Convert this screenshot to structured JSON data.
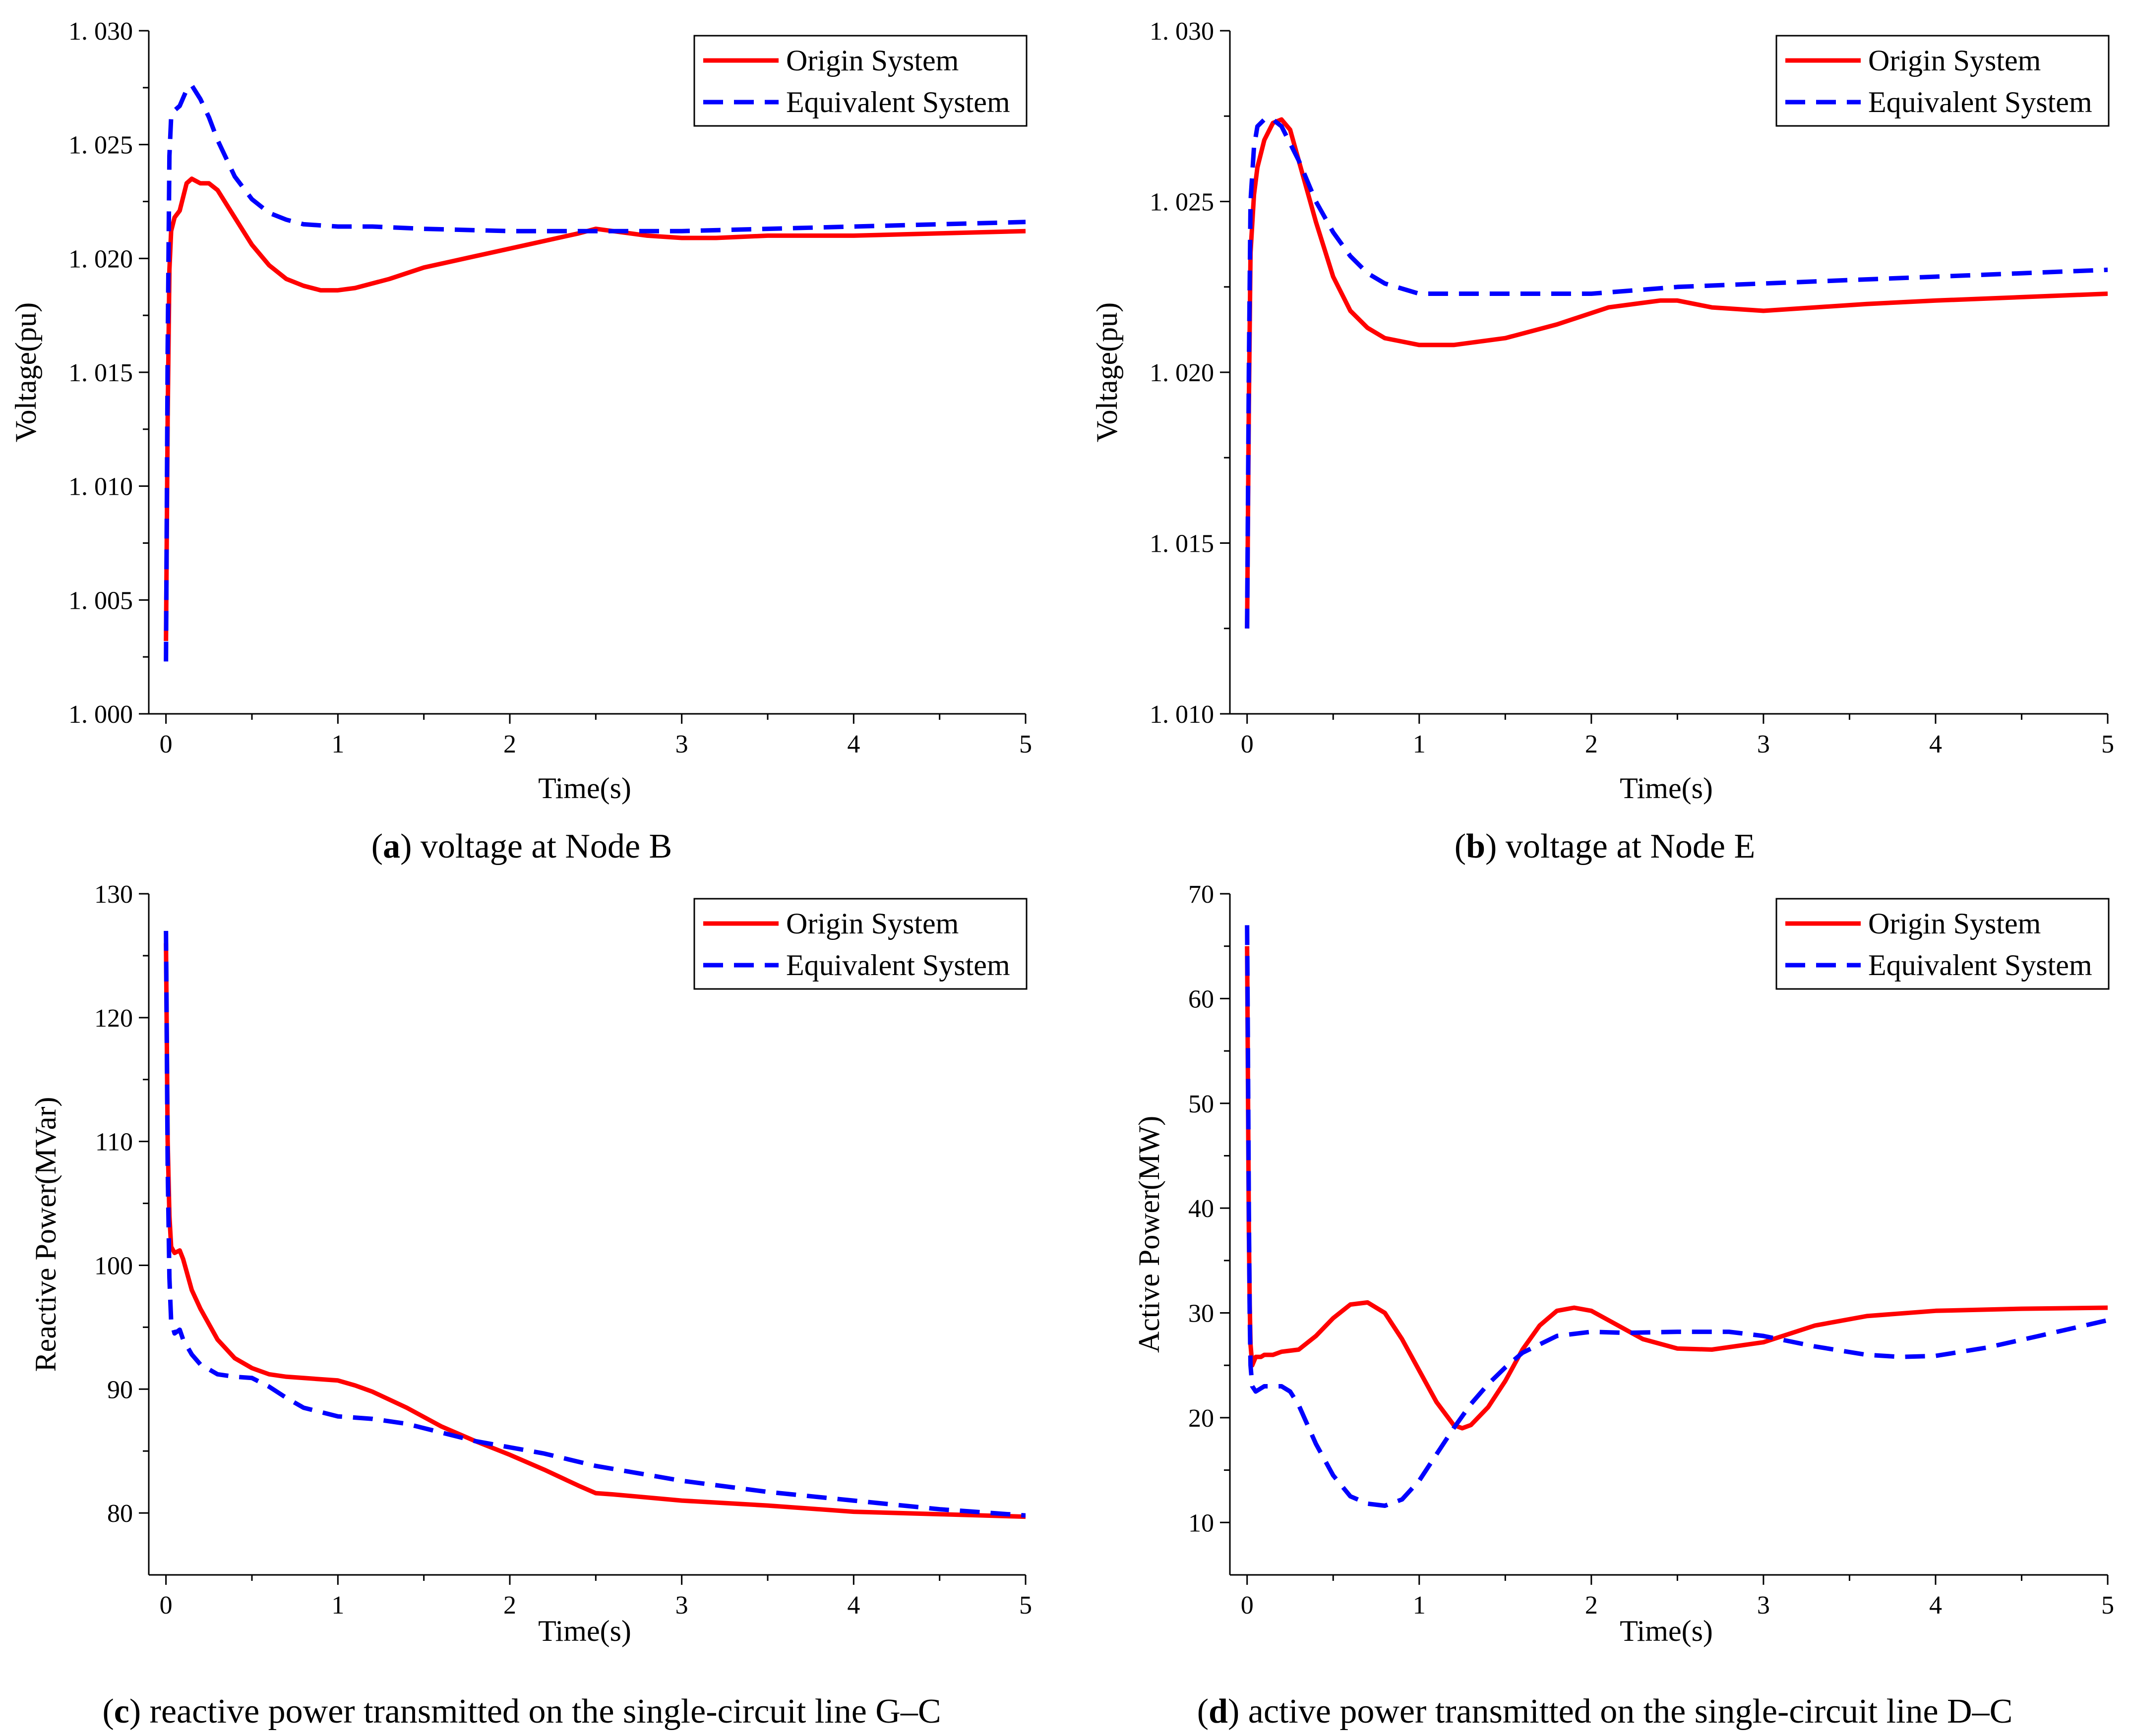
{
  "series_styles": {
    "origin_color": "#ff0000",
    "equivalent_color": "#0000ff"
  },
  "chart_data": [
    {
      "id": "a",
      "type": "line",
      "caption_letter": "a",
      "caption_text": " voltage at Node B",
      "xlabel": "Time(s)",
      "ylabel": "Voltage(pu)",
      "xlim": [
        -0.1,
        5
      ],
      "ylim": [
        1.0,
        1.03
      ],
      "xticks": [
        0,
        1,
        2,
        3,
        4,
        5
      ],
      "xtick_labels": [
        "0",
        "1",
        "2",
        "3",
        "4",
        "5"
      ],
      "yticks": [
        1.0,
        1.005,
        1.01,
        1.015,
        1.02,
        1.025,
        1.03
      ],
      "ytick_labels": [
        "1. 000",
        "1. 005",
        "1. 010",
        "1. 015",
        "1. 020",
        "1. 025",
        "1. 030"
      ],
      "legend": [
        "Origin System",
        "Equivalent System"
      ],
      "legend_position": "top-right",
      "series": [
        {
          "name": "Origin System",
          "style": "solid",
          "x": [
            0,
            0.01,
            0.02,
            0.03,
            0.05,
            0.08,
            0.12,
            0.15,
            0.2,
            0.25,
            0.3,
            0.4,
            0.5,
            0.6,
            0.7,
            0.8,
            0.9,
            1.0,
            1.1,
            1.3,
            1.5,
            1.8,
            2.1,
            2.4,
            2.5,
            2.6,
            2.8,
            3.0,
            3.2,
            3.5,
            4.0,
            4.5,
            5.0
          ],
          "y": [
            1.0032,
            1.013,
            1.0195,
            1.0212,
            1.0218,
            1.0221,
            1.0233,
            1.0235,
            1.0233,
            1.0233,
            1.023,
            1.0218,
            1.0206,
            1.0197,
            1.0191,
            1.0188,
            1.0186,
            1.0186,
            1.0187,
            1.0191,
            1.0196,
            1.0201,
            1.0206,
            1.0211,
            1.0213,
            1.0212,
            1.021,
            1.0209,
            1.0209,
            1.021,
            1.021,
            1.0211,
            1.0212
          ]
        },
        {
          "name": "Equivalent System",
          "style": "dashed",
          "x": [
            0,
            0.01,
            0.02,
            0.03,
            0.05,
            0.08,
            0.12,
            0.15,
            0.2,
            0.25,
            0.3,
            0.4,
            0.5,
            0.6,
            0.7,
            0.8,
            1.0,
            1.2,
            1.5,
            2.0,
            2.5,
            3.0,
            3.5,
            4.0,
            4.5,
            5.0
          ],
          "y": [
            1.0023,
            1.016,
            1.0245,
            1.0262,
            1.0265,
            1.0267,
            1.0274,
            1.0276,
            1.027,
            1.0262,
            1.0252,
            1.0236,
            1.0226,
            1.022,
            1.0217,
            1.0215,
            1.0214,
            1.0214,
            1.0213,
            1.0212,
            1.0212,
            1.0212,
            1.0213,
            1.0214,
            1.0215,
            1.0216
          ]
        }
      ]
    },
    {
      "id": "b",
      "type": "line",
      "caption_letter": "b",
      "caption_text": " voltage at Node E",
      "xlabel": "Time(s)",
      "ylabel": "Voltage(pu)",
      "xlim": [
        -0.1,
        5
      ],
      "ylim": [
        1.01,
        1.03
      ],
      "xticks": [
        0,
        1,
        2,
        3,
        4,
        5
      ],
      "xtick_labels": [
        "0",
        "1",
        "2",
        "3",
        "4",
        "5"
      ],
      "yticks": [
        1.01,
        1.015,
        1.02,
        1.025,
        1.03
      ],
      "ytick_labels": [
        "1. 010",
        "1. 015",
        "1. 020",
        "1. 025",
        "1. 030"
      ],
      "legend": [
        "Origin System",
        "Equivalent System"
      ],
      "legend_position": "top-right",
      "series": [
        {
          "name": "Origin System",
          "style": "solid",
          "x": [
            0,
            0.01,
            0.02,
            0.04,
            0.06,
            0.1,
            0.15,
            0.2,
            0.25,
            0.3,
            0.4,
            0.5,
            0.6,
            0.7,
            0.8,
            0.9,
            1.0,
            1.1,
            1.2,
            1.5,
            1.8,
            2.1,
            2.4,
            2.5,
            2.7,
            3.0,
            3.3,
            3.6,
            4.0,
            4.5,
            5.0
          ],
          "y": [
            1.0125,
            1.019,
            1.0235,
            1.0252,
            1.026,
            1.0268,
            1.0273,
            1.0274,
            1.0271,
            1.0262,
            1.0244,
            1.0228,
            1.0218,
            1.0213,
            1.021,
            1.0209,
            1.0208,
            1.0208,
            1.0208,
            1.021,
            1.0214,
            1.0219,
            1.0221,
            1.0221,
            1.0219,
            1.0218,
            1.0219,
            1.022,
            1.0221,
            1.0222,
            1.0223
          ]
        },
        {
          "name": "Equivalent System",
          "style": "dashed",
          "x": [
            0,
            0.01,
            0.02,
            0.04,
            0.06,
            0.1,
            0.15,
            0.2,
            0.3,
            0.4,
            0.5,
            0.6,
            0.7,
            0.8,
            1.0,
            1.2,
            1.5,
            2.0,
            2.5,
            3.0,
            3.5,
            4.0,
            4.5,
            5.0
          ],
          "y": [
            1.0125,
            1.02,
            1.025,
            1.0266,
            1.0272,
            1.0274,
            1.0274,
            1.0272,
            1.0262,
            1.025,
            1.0241,
            1.0234,
            1.0229,
            1.0226,
            1.0223,
            1.0223,
            1.0223,
            1.0223,
            1.0225,
            1.0226,
            1.0227,
            1.0228,
            1.0229,
            1.023
          ]
        }
      ]
    },
    {
      "id": "c",
      "type": "line",
      "caption_letter": "c",
      "caption_text": " reactive power transmitted on the single-circuit line G–C",
      "xlabel": "Time(s)",
      "ylabel": "Reactive Power(MVar)",
      "xlim": [
        -0.1,
        5
      ],
      "ylim": [
        75,
        130
      ],
      "xticks": [
        0,
        1,
        2,
        3,
        4,
        5
      ],
      "xtick_labels": [
        "0",
        "1",
        "2",
        "3",
        "4",
        "5"
      ],
      "yticks": [
        80,
        90,
        100,
        110,
        120,
        130
      ],
      "ytick_labels": [
        "80",
        "90",
        "100",
        "110",
        "120",
        "130"
      ],
      "legend": [
        "Origin System",
        "Equivalent System"
      ],
      "legend_position": "top-right",
      "series": [
        {
          "name": "Origin System",
          "style": "solid",
          "x": [
            0,
            0.01,
            0.02,
            0.03,
            0.05,
            0.08,
            0.1,
            0.15,
            0.2,
            0.3,
            0.4,
            0.5,
            0.6,
            0.7,
            0.8,
            1.0,
            1.1,
            1.2,
            1.4,
            1.6,
            1.8,
            2.0,
            2.2,
            2.4,
            2.5,
            2.6,
            3.0,
            3.5,
            4.0,
            4.5,
            5.0
          ],
          "y": [
            126,
            110,
            104,
            101.5,
            101,
            101.2,
            100.5,
            98,
            96.5,
            94,
            92.5,
            91.7,
            91.2,
            91,
            90.9,
            90.7,
            90.3,
            89.8,
            88.5,
            87,
            85.8,
            84.7,
            83.5,
            82.2,
            81.6,
            81.5,
            81,
            80.6,
            80.1,
            79.9,
            79.7
          ]
        },
        {
          "name": "Equivalent System",
          "style": "dashed",
          "x": [
            0,
            0.01,
            0.02,
            0.03,
            0.05,
            0.08,
            0.1,
            0.15,
            0.2,
            0.3,
            0.4,
            0.5,
            0.6,
            0.7,
            0.8,
            1.0,
            1.2,
            1.4,
            1.6,
            1.8,
            2.0,
            2.2,
            2.5,
            3.0,
            3.5,
            4.0,
            4.5,
            5.0
          ],
          "y": [
            127,
            108,
            99,
            95.5,
            94.5,
            94.8,
            94,
            92.8,
            92,
            91.2,
            91,
            90.9,
            90.2,
            89.3,
            88.5,
            87.8,
            87.6,
            87.2,
            86.5,
            85.8,
            85.3,
            84.8,
            83.8,
            82.6,
            81.7,
            81,
            80.3,
            79.8
          ]
        }
      ]
    },
    {
      "id": "d",
      "type": "line",
      "caption_letter": "d",
      "caption_text": " active power transmitted on the single-circuit line D–C",
      "xlabel": "Time(s)",
      "ylabel": "Active Power(MW)",
      "xlim": [
        -0.1,
        5
      ],
      "ylim": [
        5,
        70
      ],
      "xticks": [
        0,
        1,
        2,
        3,
        4,
        5
      ],
      "xtick_labels": [
        "0",
        "1",
        "2",
        "3",
        "4",
        "5"
      ],
      "yticks": [
        10,
        20,
        30,
        40,
        50,
        60,
        70
      ],
      "ytick_labels": [
        "10",
        "20",
        "30",
        "40",
        "50",
        "60",
        "70"
      ],
      "legend": [
        "Origin System",
        "Equivalent System"
      ],
      "legend_position": "top-right",
      "series": [
        {
          "name": "Origin System",
          "style": "solid",
          "x": [
            0,
            0.005,
            0.01,
            0.015,
            0.02,
            0.03,
            0.05,
            0.08,
            0.1,
            0.15,
            0.2,
            0.3,
            0.4,
            0.5,
            0.6,
            0.7,
            0.8,
            0.9,
            1.0,
            1.1,
            1.2,
            1.25,
            1.3,
            1.4,
            1.5,
            1.6,
            1.7,
            1.8,
            1.9,
            2.0,
            2.1,
            2.3,
            2.5,
            2.7,
            3.0,
            3.3,
            3.6,
            4.0,
            4.5,
            5.0
          ],
          "y": [
            65,
            52,
            38,
            31,
            27,
            25,
            25.8,
            25.8,
            26,
            26,
            26.3,
            26.5,
            27.8,
            29.5,
            30.8,
            31,
            30,
            27.5,
            24.5,
            21.5,
            19.3,
            19,
            19.3,
            21,
            23.5,
            26.5,
            28.8,
            30.2,
            30.5,
            30.2,
            29.3,
            27.5,
            26.6,
            26.5,
            27.2,
            28.8,
            29.7,
            30.2,
            30.4,
            30.5
          ]
        },
        {
          "name": "Equivalent System",
          "style": "dashed",
          "x": [
            0,
            0.005,
            0.01,
            0.015,
            0.02,
            0.03,
            0.05,
            0.08,
            0.1,
            0.15,
            0.2,
            0.25,
            0.3,
            0.4,
            0.5,
            0.6,
            0.7,
            0.8,
            0.9,
            1.0,
            1.1,
            1.2,
            1.3,
            1.4,
            1.5,
            1.6,
            1.8,
            2.0,
            2.2,
            2.5,
            2.8,
            3.0,
            3.3,
            3.6,
            3.8,
            4.0,
            4.3,
            4.6,
            5.0
          ],
          "y": [
            67,
            55,
            40,
            30,
            25,
            23,
            22.5,
            22.8,
            23,
            23,
            23,
            22.5,
            21.2,
            17.5,
            14.5,
            12.5,
            11.8,
            11.6,
            12.2,
            14,
            16.5,
            19,
            21.3,
            23.2,
            24.8,
            26.2,
            27.8,
            28.2,
            28.1,
            28.2,
            28.2,
            27.8,
            26.8,
            26,
            25.8,
            25.9,
            26.7,
            27.8,
            29.3
          ]
        }
      ]
    }
  ]
}
